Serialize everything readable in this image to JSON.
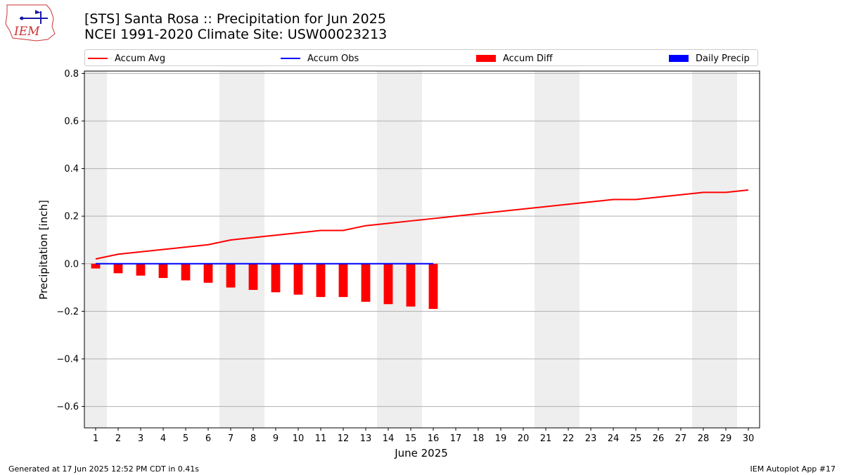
{
  "header": {
    "title_line1": "[STS] Santa Rosa :: Precipitation for Jun 2025",
    "title_line2": "NCEI 1991-2020 Climate Site: USW00023213",
    "logo_text": "IEM"
  },
  "footer": {
    "generated": "Generated at 17 Jun 2025 12:52 PM CDT in 0.41s",
    "app": "IEM Autoplot App #17"
  },
  "colors": {
    "avg": "#ff0000",
    "obs": "#0000ff",
    "diff": "#ff0000",
    "daily": "#0000ff",
    "weekend": "#eeeeee",
    "grid": "#b0b0b0"
  },
  "chart_data": {
    "type": "bar",
    "xlabel": "June 2025",
    "ylabel": "Precipitation [inch]",
    "xlim": [
      0.5,
      30.5
    ],
    "ylim": [
      -0.69,
      0.81
    ],
    "yticks": [
      -0.6,
      -0.4,
      -0.2,
      0.0,
      0.2,
      0.4,
      0.6,
      0.8
    ],
    "ytick_labels": [
      "−0.6",
      "−0.4",
      "−0.2",
      "0.0",
      "0.2",
      "0.4",
      "0.6",
      "0.8"
    ],
    "grid": "horizontal",
    "legend_placement": "top",
    "days": [
      1,
      2,
      3,
      4,
      5,
      6,
      7,
      8,
      9,
      10,
      11,
      12,
      13,
      14,
      15,
      16,
      17,
      18,
      19,
      20,
      21,
      22,
      23,
      24,
      25,
      26,
      27,
      28,
      29,
      30
    ],
    "weekend_bands": [
      [
        0.5,
        1.5
      ],
      [
        6.5,
        8.5
      ],
      [
        13.5,
        15.5
      ],
      [
        20.5,
        22.5
      ],
      [
        27.5,
        29.5
      ]
    ],
    "legend": [
      {
        "label": "Accum Avg",
        "kind": "line",
        "color": "#ff0000"
      },
      {
        "label": "Accum Obs",
        "kind": "line",
        "color": "#0000ff"
      },
      {
        "label": "Accum Diff",
        "kind": "box",
        "color": "#ff0000"
      },
      {
        "label": "Daily Precip",
        "kind": "box",
        "color": "#0000ff"
      }
    ],
    "series": [
      {
        "name": "Accum Avg",
        "kind": "line",
        "values": [
          0.02,
          0.04,
          0.05,
          0.06,
          0.07,
          0.08,
          0.1,
          0.11,
          0.12,
          0.13,
          0.14,
          0.14,
          0.16,
          0.17,
          0.18,
          0.19,
          0.2,
          0.21,
          0.22,
          0.23,
          0.24,
          0.25,
          0.26,
          0.27,
          0.27,
          0.28,
          0.29,
          0.3,
          0.3,
          0.31
        ]
      },
      {
        "name": "Accum Obs",
        "kind": "line",
        "values": [
          0,
          0,
          0,
          0,
          0,
          0,
          0,
          0,
          0,
          0,
          0,
          0,
          0,
          0,
          0,
          0
        ]
      },
      {
        "name": "Accum Diff",
        "kind": "bar",
        "values": [
          -0.02,
          -0.04,
          -0.05,
          -0.06,
          -0.07,
          -0.08,
          -0.1,
          -0.11,
          -0.12,
          -0.13,
          -0.14,
          -0.14,
          -0.16,
          -0.17,
          -0.18,
          -0.19
        ]
      },
      {
        "name": "Daily Precip",
        "kind": "bar",
        "values": [
          0,
          0,
          0,
          0,
          0,
          0,
          0,
          0,
          0,
          0,
          0,
          0,
          0,
          0,
          0,
          0
        ]
      }
    ]
  }
}
